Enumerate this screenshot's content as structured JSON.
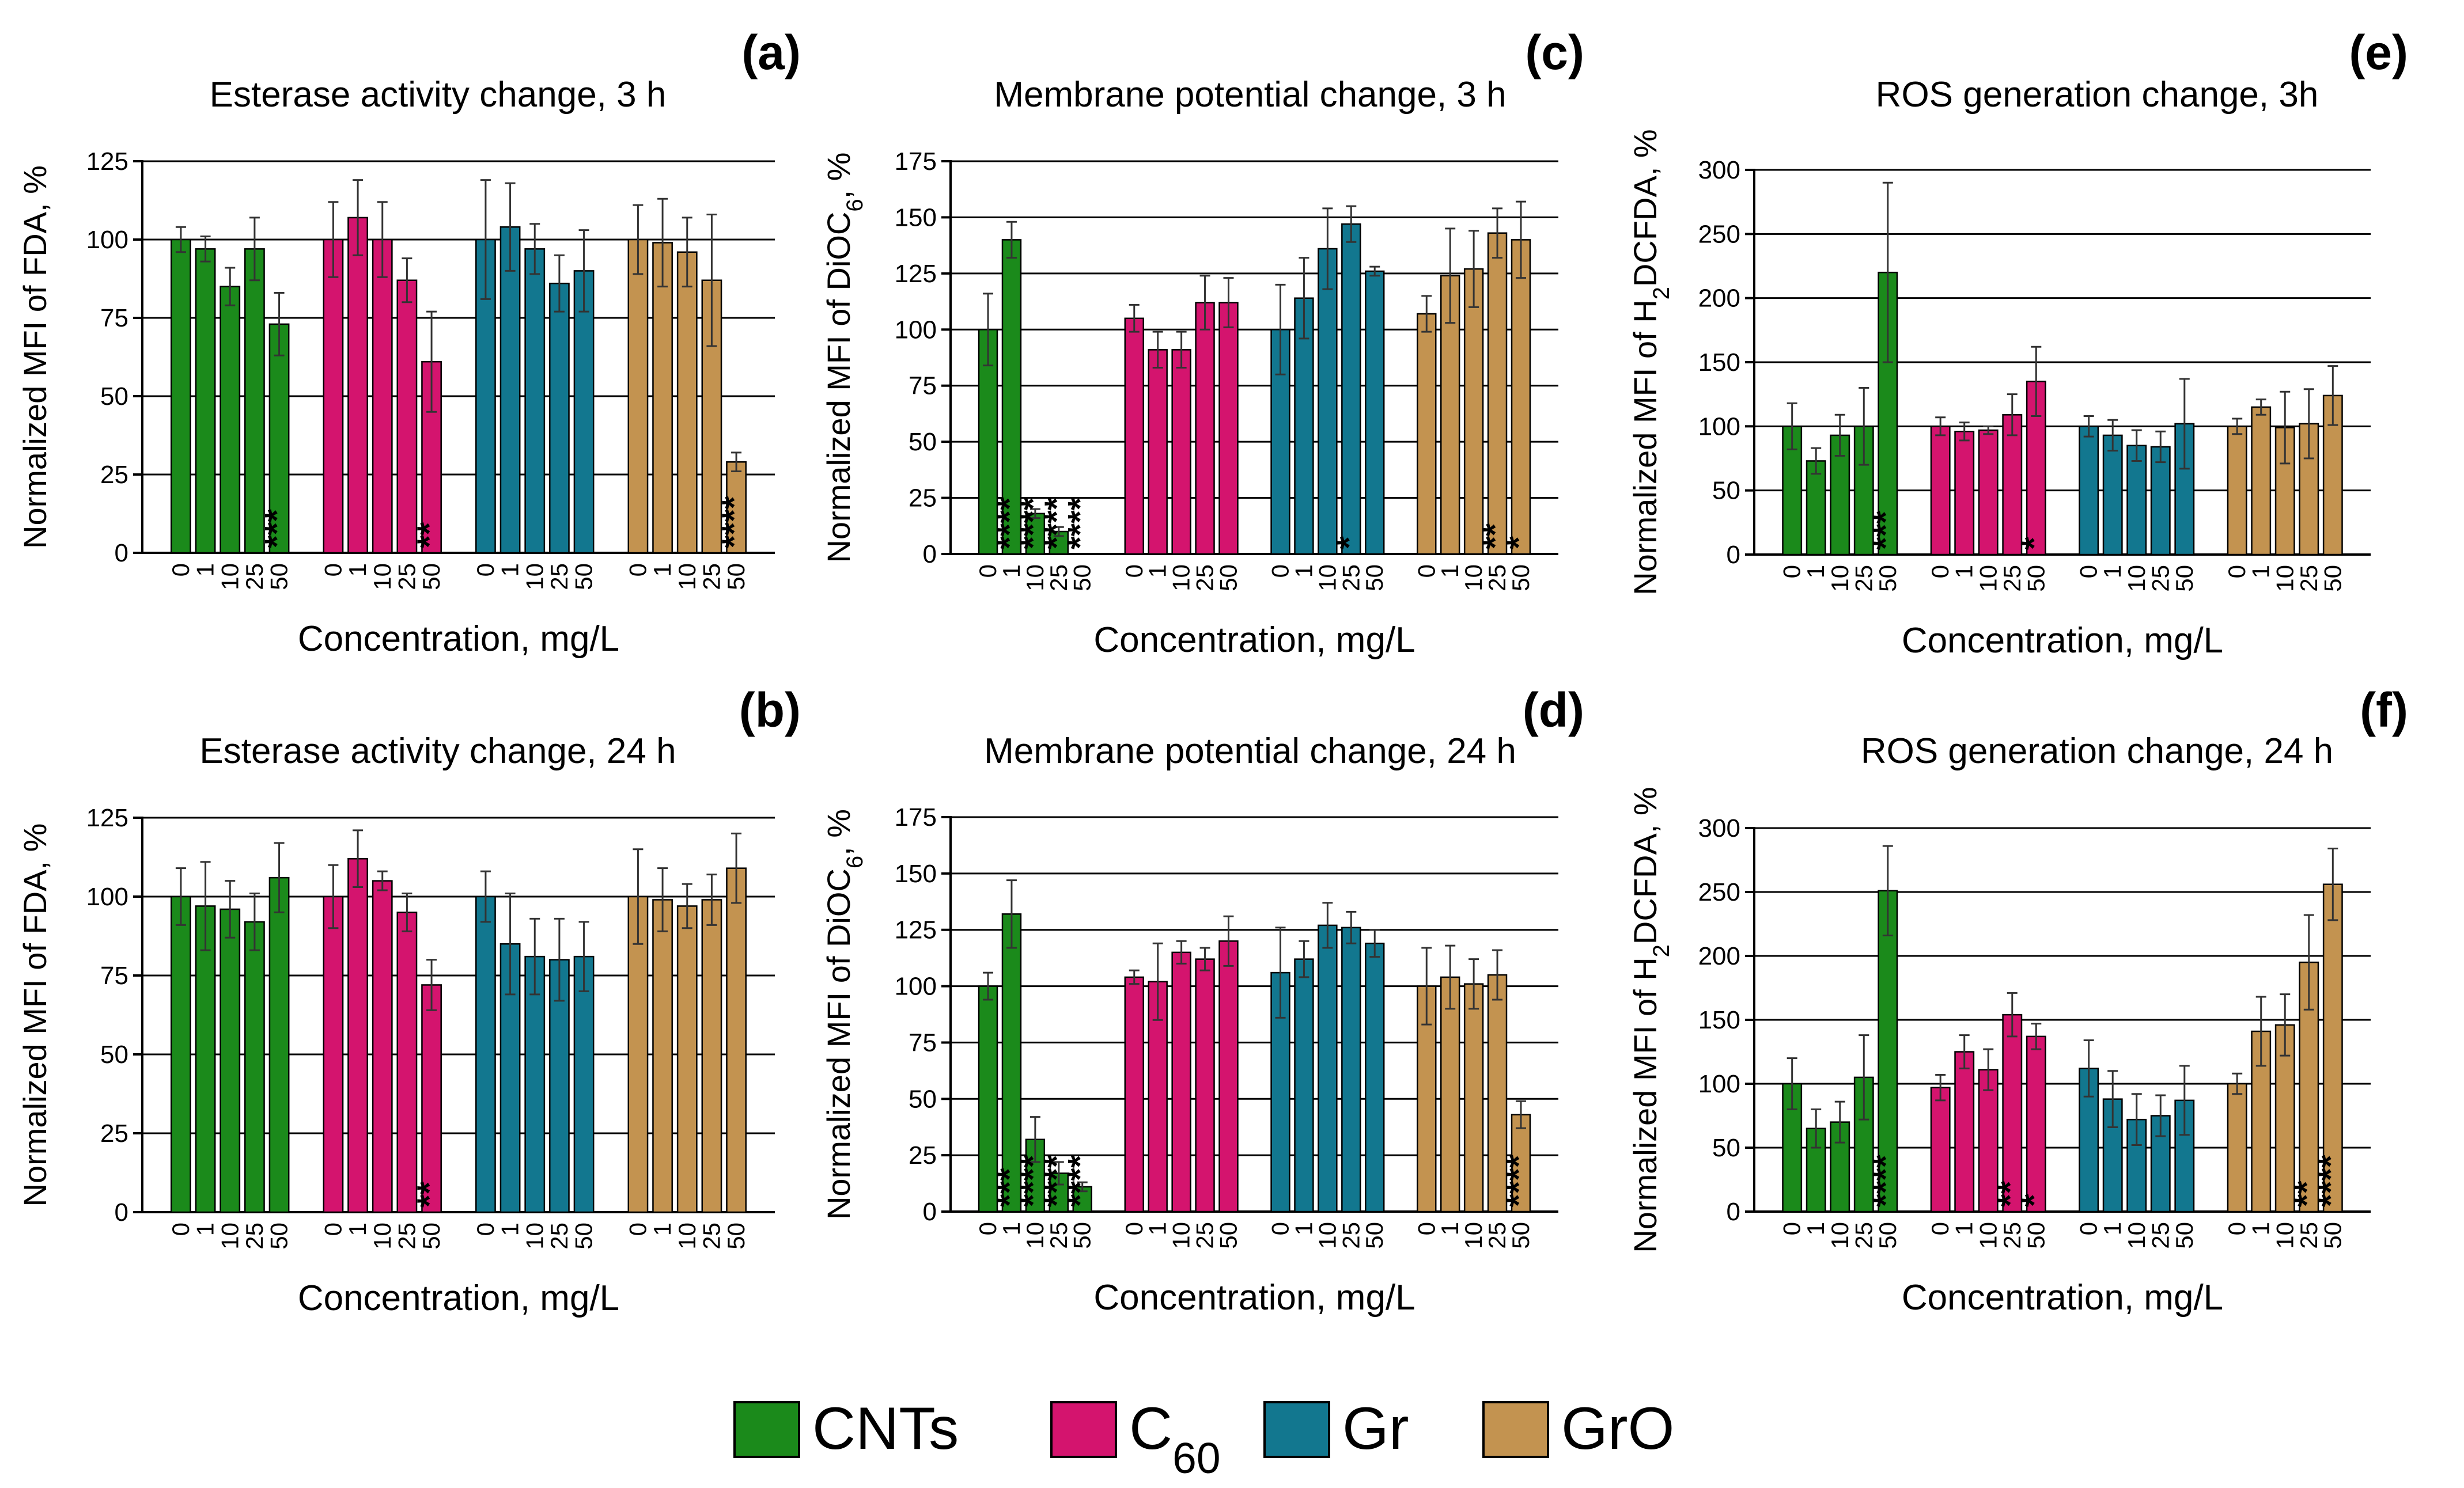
{
  "figure": {
    "xlabel": "Concentration, mg/L",
    "concentrations": [
      "0",
      "1",
      "10",
      "25",
      "50"
    ],
    "legend": [
      {
        "label": "CNTs",
        "color": "#1b8a1b"
      },
      {
        "label": "C60",
        "color": "#d4146e"
      },
      {
        "label": "Gr",
        "color": "#12778f"
      },
      {
        "label": "GrO",
        "color": "#c39350"
      }
    ]
  },
  "chart_data": [
    {
      "id": "a",
      "panel_label": "(a)",
      "type": "bar",
      "title": "Esterase activity change, 3 h",
      "ylabel": "Normalized MFI of FDA, %",
      "xlabel": "Concentration, mg/L",
      "categories": [
        "0",
        "1",
        "10",
        "25",
        "50"
      ],
      "ylim": [
        0,
        125
      ],
      "yticks": [
        0,
        25,
        50,
        75,
        100,
        125
      ],
      "series": [
        {
          "name": "CNTs",
          "values": [
            100,
            97,
            85,
            97,
            73
          ],
          "errors": [
            4,
            4,
            6,
            10,
            10
          ],
          "sig": [
            "",
            "",
            "",
            "",
            "***"
          ]
        },
        {
          "name": "C60",
          "values": [
            100,
            107,
            100,
            87,
            61
          ],
          "errors": [
            12,
            12,
            12,
            7,
            16
          ],
          "sig": [
            "",
            "",
            "",
            "",
            "**"
          ]
        },
        {
          "name": "Gr",
          "values": [
            100,
            104,
            97,
            86,
            90
          ],
          "errors": [
            19,
            14,
            8,
            9,
            13
          ],
          "sig": [
            "",
            "",
            "",
            "",
            ""
          ]
        },
        {
          "name": "GrO",
          "values": [
            100,
            99,
            96,
            87,
            29
          ],
          "errors": [
            11,
            14,
            11,
            21,
            3
          ],
          "sig": [
            "",
            "",
            "",
            "",
            "****"
          ]
        }
      ]
    },
    {
      "id": "b",
      "panel_label": "(b)",
      "type": "bar",
      "title": "Esterase activity change, 24 h",
      "ylabel": "Normalized MFI of FDA, %",
      "xlabel": "Concentration, mg/L",
      "categories": [
        "0",
        "1",
        "10",
        "25",
        "50"
      ],
      "ylim": [
        0,
        125
      ],
      "yticks": [
        0,
        25,
        50,
        75,
        100,
        125
      ],
      "series": [
        {
          "name": "CNTs",
          "values": [
            100,
            97,
            96,
            92,
            106
          ],
          "errors": [
            9,
            14,
            9,
            9,
            11
          ],
          "sig": [
            "",
            "",
            "",
            "",
            ""
          ]
        },
        {
          "name": "C60",
          "values": [
            100,
            112,
            105,
            95,
            72
          ],
          "errors": [
            10,
            9,
            3,
            6,
            8
          ],
          "sig": [
            "",
            "",
            "",
            "",
            "**"
          ]
        },
        {
          "name": "Gr",
          "values": [
            100,
            85,
            81,
            80,
            81
          ],
          "errors": [
            8,
            16,
            12,
            13,
            11
          ],
          "sig": [
            "",
            "",
            "",
            "",
            ""
          ]
        },
        {
          "name": "GrO",
          "values": [
            100,
            99,
            97,
            99,
            109
          ],
          "errors": [
            15,
            10,
            7,
            8,
            11
          ],
          "sig": [
            "",
            "",
            "",
            "",
            ""
          ]
        }
      ]
    },
    {
      "id": "c",
      "panel_label": "(c)",
      "type": "bar",
      "title": "Membrane potential change, 3 h",
      "ylabel": "Normalized MFI of DiOC6, %",
      "xlabel": "Concentration, mg/L",
      "categories": [
        "0",
        "1",
        "10",
        "25",
        "50"
      ],
      "ylim": [
        0,
        175
      ],
      "yticks": [
        0,
        25,
        50,
        75,
        100,
        125,
        150,
        175
      ],
      "series": [
        {
          "name": "CNTs",
          "values": [
            100,
            140,
            18,
            10,
            0
          ],
          "errors": [
            16,
            8,
            2,
            2,
            0
          ],
          "sig": [
            "",
            "****",
            "****",
            "****",
            "****"
          ]
        },
        {
          "name": "C60",
          "values": [
            105,
            91,
            91,
            112,
            112
          ],
          "errors": [
            6,
            8,
            8,
            12,
            11
          ],
          "sig": [
            "",
            "",
            "",
            "",
            ""
          ]
        },
        {
          "name": "Gr",
          "values": [
            100,
            114,
            136,
            147,
            126
          ],
          "errors": [
            20,
            18,
            18,
            8,
            2
          ],
          "sig": [
            "",
            "",
            "",
            "*",
            ""
          ]
        },
        {
          "name": "GrO",
          "values": [
            107,
            124,
            127,
            143,
            140
          ],
          "errors": [
            8,
            21,
            17,
            11,
            17
          ],
          "sig": [
            "",
            "",
            "",
            "**",
            "*"
          ]
        }
      ]
    },
    {
      "id": "d",
      "panel_label": "(d)",
      "type": "bar",
      "title": "Membrane potential change, 24 h",
      "ylabel": "Normalized MFI of DiOC6, %",
      "xlabel": "Concentration, mg/L",
      "categories": [
        "0",
        "1",
        "10",
        "25",
        "50"
      ],
      "ylim": [
        0,
        175
      ],
      "yticks": [
        0,
        25,
        50,
        75,
        100,
        125,
        150,
        175
      ],
      "series": [
        {
          "name": "CNTs",
          "values": [
            100,
            132,
            32,
            17,
            11
          ],
          "errors": [
            6,
            15,
            10,
            5,
            2
          ],
          "sig": [
            "",
            "***",
            "****",
            "****",
            "****"
          ]
        },
        {
          "name": "C60",
          "values": [
            104,
            102,
            115,
            112,
            120
          ],
          "errors": [
            3,
            17,
            5,
            5,
            11
          ],
          "sig": [
            "",
            "",
            "",
            "",
            ""
          ]
        },
        {
          "name": "Gr",
          "values": [
            106,
            112,
            127,
            126,
            119
          ],
          "errors": [
            20,
            8,
            10,
            7,
            6
          ],
          "sig": [
            "",
            "",
            "",
            "",
            ""
          ]
        },
        {
          "name": "GrO",
          "values": [
            100,
            104,
            101,
            105,
            43
          ],
          "errors": [
            17,
            14,
            11,
            11,
            6
          ],
          "sig": [
            "",
            "",
            "",
            "",
            "****"
          ]
        }
      ]
    },
    {
      "id": "e",
      "panel_label": "(e)",
      "type": "bar",
      "title": "ROS generation change, 3h",
      "ylabel": "Normalized MFI of H2DCFDA, %",
      "xlabel": "Concentration, mg/L",
      "categories": [
        "0",
        "1",
        "10",
        "25",
        "50"
      ],
      "ylim": [
        0,
        300
      ],
      "yticks": [
        0,
        50,
        100,
        150,
        200,
        250,
        300
      ],
      "series": [
        {
          "name": "CNTs",
          "values": [
            100,
            73,
            93,
            100,
            220
          ],
          "errors": [
            18,
            10,
            16,
            30,
            70
          ],
          "sig": [
            "",
            "",
            "",
            "",
            "***"
          ]
        },
        {
          "name": "C60",
          "values": [
            100,
            96,
            97,
            109,
            135
          ],
          "errors": [
            7,
            7,
            3,
            16,
            27
          ],
          "sig": [
            "",
            "",
            "",
            "",
            "*"
          ]
        },
        {
          "name": "Gr",
          "values": [
            100,
            93,
            85,
            84,
            102
          ],
          "errors": [
            8,
            12,
            12,
            12,
            35
          ],
          "sig": [
            "",
            "",
            "",
            "",
            ""
          ]
        },
        {
          "name": "GrO",
          "values": [
            100,
            115,
            99,
            102,
            124
          ],
          "errors": [
            6,
            6,
            28,
            27,
            23
          ],
          "sig": [
            "",
            "",
            "",
            "",
            ""
          ]
        }
      ]
    },
    {
      "id": "f",
      "panel_label": "(f)",
      "type": "bar",
      "title": "ROS generation change, 24 h",
      "ylabel": "Normalized MFI of H2DCFDA, %",
      "xlabel": "Concentration, mg/L",
      "categories": [
        "0",
        "1",
        "10",
        "25",
        "50"
      ],
      "ylim": [
        0,
        300
      ],
      "yticks": [
        0,
        50,
        100,
        150,
        200,
        250,
        300
      ],
      "series": [
        {
          "name": "CNTs",
          "values": [
            100,
            65,
            70,
            105,
            251
          ],
          "errors": [
            20,
            15,
            16,
            33,
            35
          ],
          "sig": [
            "",
            "",
            "",
            "",
            "****"
          ]
        },
        {
          "name": "C60",
          "values": [
            97,
            125,
            111,
            154,
            137
          ],
          "errors": [
            10,
            13,
            16,
            17,
            10
          ],
          "sig": [
            "",
            "",
            "",
            "**",
            "*"
          ]
        },
        {
          "name": "Gr",
          "values": [
            112,
            88,
            72,
            75,
            87
          ],
          "errors": [
            22,
            22,
            20,
            16,
            27
          ],
          "sig": [
            "",
            "",
            "",
            "",
            ""
          ]
        },
        {
          "name": "GrO",
          "values": [
            100,
            141,
            146,
            195,
            256
          ],
          "errors": [
            8,
            27,
            24,
            37,
            28
          ],
          "sig": [
            "",
            "",
            "",
            "**",
            "****"
          ]
        }
      ]
    }
  ]
}
